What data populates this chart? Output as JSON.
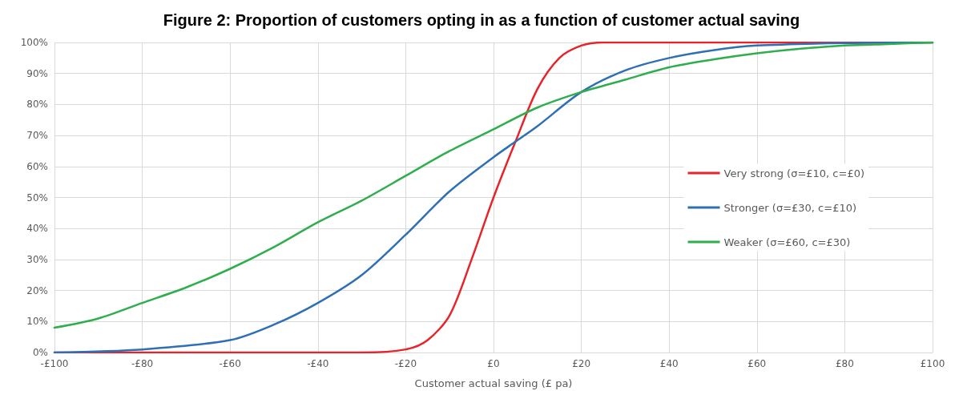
{
  "chart_data": {
    "type": "line",
    "title": "Figure 2: Proportion of customers opting in as a function of customer actual saving",
    "xlabel": "Customer actual saving (£ pa)",
    "xlim": [
      -100,
      100
    ],
    "xticks": [
      {
        "value": -100,
        "label": "-£100"
      },
      {
        "value": -80,
        "label": "-£80"
      },
      {
        "value": -60,
        "label": "-£60"
      },
      {
        "value": -40,
        "label": "-£40"
      },
      {
        "value": -20,
        "label": "-£20"
      },
      {
        "value": 0,
        "label": "£0"
      },
      {
        "value": 20,
        "label": "£20"
      },
      {
        "value": 40,
        "label": "£40"
      },
      {
        "value": 60,
        "label": "£60"
      },
      {
        "value": 80,
        "label": "£80"
      },
      {
        "value": 100,
        "label": "£100"
      }
    ],
    "ylim": [
      0,
      100
    ],
    "yticks": [
      {
        "value": 0,
        "label": "0%"
      },
      {
        "value": 10,
        "label": "10%"
      },
      {
        "value": 20,
        "label": "20%"
      },
      {
        "value": 30,
        "label": "30%"
      },
      {
        "value": 40,
        "label": "40%"
      },
      {
        "value": 50,
        "label": "50%"
      },
      {
        "value": 60,
        "label": "60%"
      },
      {
        "value": 70,
        "label": "70%"
      },
      {
        "value": 80,
        "label": "80%"
      },
      {
        "value": 90,
        "label": "90%"
      },
      {
        "value": 100,
        "label": "100%"
      }
    ],
    "grid": true,
    "legend": "right",
    "marker": "none",
    "line_style": "solid",
    "series": [
      {
        "name": "Very strong (σ=£10, c=£0)",
        "color": "#e8242a",
        "x": [
          -100,
          -60,
          -30,
          -20,
          -15,
          -10,
          -5,
          0,
          5,
          10,
          15,
          20,
          25,
          30,
          60,
          100
        ],
        "values": [
          0,
          0,
          0,
          1,
          4,
          12,
          30,
          50,
          68,
          85,
          95,
          99,
          100,
          100,
          100,
          100
        ]
      },
      {
        "name": "Stronger (σ=£30, c=£10)",
        "color": "#2e6fb5",
        "x": [
          -100,
          -80,
          -60,
          -50,
          -40,
          -30,
          -20,
          -10,
          0,
          5,
          10,
          20,
          30,
          40,
          50,
          60,
          80,
          100
        ],
        "values": [
          0,
          1,
          4,
          9,
          16,
          25,
          38,
          52,
          63,
          68,
          73,
          84,
          91,
          95,
          97.5,
          99,
          99.8,
          100
        ]
      },
      {
        "name": "Weaker (σ=£60, c=£30)",
        "color": "#2eae4c",
        "x": [
          -100,
          -90,
          -80,
          -70,
          -60,
          -50,
          -40,
          -30,
          -20,
          -10,
          0,
          10,
          20,
          30,
          40,
          50,
          60,
          70,
          80,
          90,
          100
        ],
        "values": [
          8,
          11,
          16,
          21,
          27,
          34,
          42,
          49,
          57,
          65,
          72,
          79,
          84,
          88,
          92,
          94.5,
          96.5,
          98,
          99,
          99.5,
          100
        ]
      }
    ]
  }
}
